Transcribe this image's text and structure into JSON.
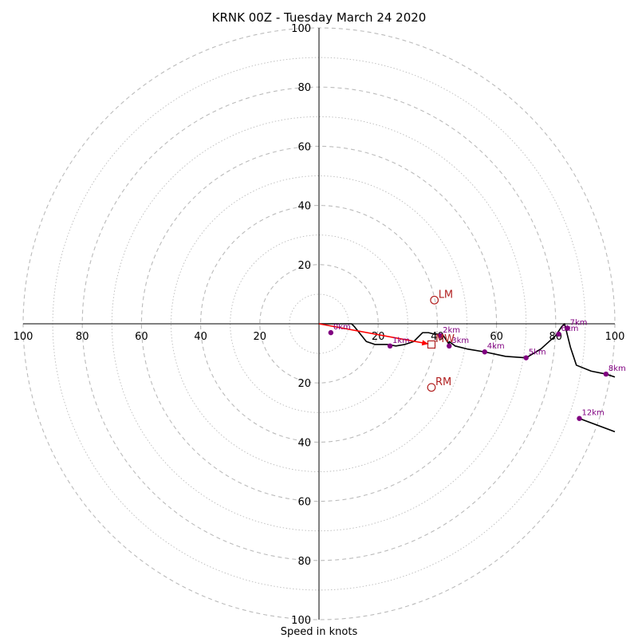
{
  "chart_data": {
    "type": "scatter",
    "subtype": "hodograph",
    "title": "KRNK 00Z - Tuesday March 24 2020",
    "xlabel": "Speed in knots",
    "ylabel": "",
    "xlim": [
      -100,
      100
    ],
    "ylim": [
      -100,
      100
    ],
    "ring_spacing_major": 20,
    "ring_spacing_minor": 10,
    "grid": true,
    "tick_labels": {
      "x": [
        "100",
        "80",
        "60",
        "40",
        "20",
        "20",
        "40",
        "60",
        "80",
        "100"
      ],
      "y": [
        "100",
        "80",
        "60",
        "40",
        "20",
        "20",
        "40",
        "60",
        "80",
        "100"
      ]
    },
    "colors": {
      "hodograph_line": "#000000",
      "height_marker": "#800080",
      "storm_motion": "#b22222",
      "shear_vector": "#ff0000",
      "grid": "#bbbbbb"
    },
    "hodograph_line": {
      "u": [
        0,
        11,
        12,
        16,
        19,
        23,
        26,
        29,
        32,
        35,
        37,
        39,
        40,
        42,
        44,
        44,
        46,
        50,
        56,
        63,
        70,
        75,
        80,
        82,
        83,
        84,
        85,
        87,
        92,
        97,
        100
      ],
      "v": [
        0,
        0,
        -1,
        -6,
        -7,
        -7,
        -7.5,
        -7,
        -6,
        -3,
        -3,
        -3.5,
        -3.5,
        -4,
        -7,
        -6,
        -7.5,
        -8.5,
        -9.5,
        -11,
        -11.5,
        -8.5,
        -4,
        -1,
        0,
        -4,
        -8,
        -14,
        -16,
        -17,
        -18
      ]
    },
    "hodograph_line_upper": {
      "u": [
        88,
        100
      ],
      "v": [
        -32,
        -36.5
      ]
    },
    "height_markers": [
      {
        "label": "0km",
        "u": 4,
        "v": -3
      },
      {
        "label": "1km",
        "u": 24,
        "v": -7.5
      },
      {
        "label": "2km",
        "u": 41,
        "v": -4
      },
      {
        "label": "3km",
        "u": 44,
        "v": -7.5
      },
      {
        "label": "4km",
        "u": 56,
        "v": -9.5
      },
      {
        "label": "5km",
        "u": 70,
        "v": -11.5
      },
      {
        "label": "6km",
        "u": 81,
        "v": -3.5
      },
      {
        "label": "7km",
        "u": 84,
        "v": -1.5
      },
      {
        "label": "8km",
        "u": 97,
        "v": -17
      },
      {
        "label": "12km",
        "u": 88,
        "v": -32
      }
    ],
    "storm_motion": [
      {
        "label": "LM",
        "u": 39,
        "v": 8,
        "marker": "circle"
      },
      {
        "label": "MW",
        "u": 38,
        "v": -7,
        "marker": "square"
      },
      {
        "label": "RM",
        "u": 38,
        "v": -21.5,
        "marker": "circle"
      }
    ],
    "shear_vector": {
      "u0": 0,
      "v0": 0,
      "u1": 37,
      "v1": -6.8
    }
  }
}
